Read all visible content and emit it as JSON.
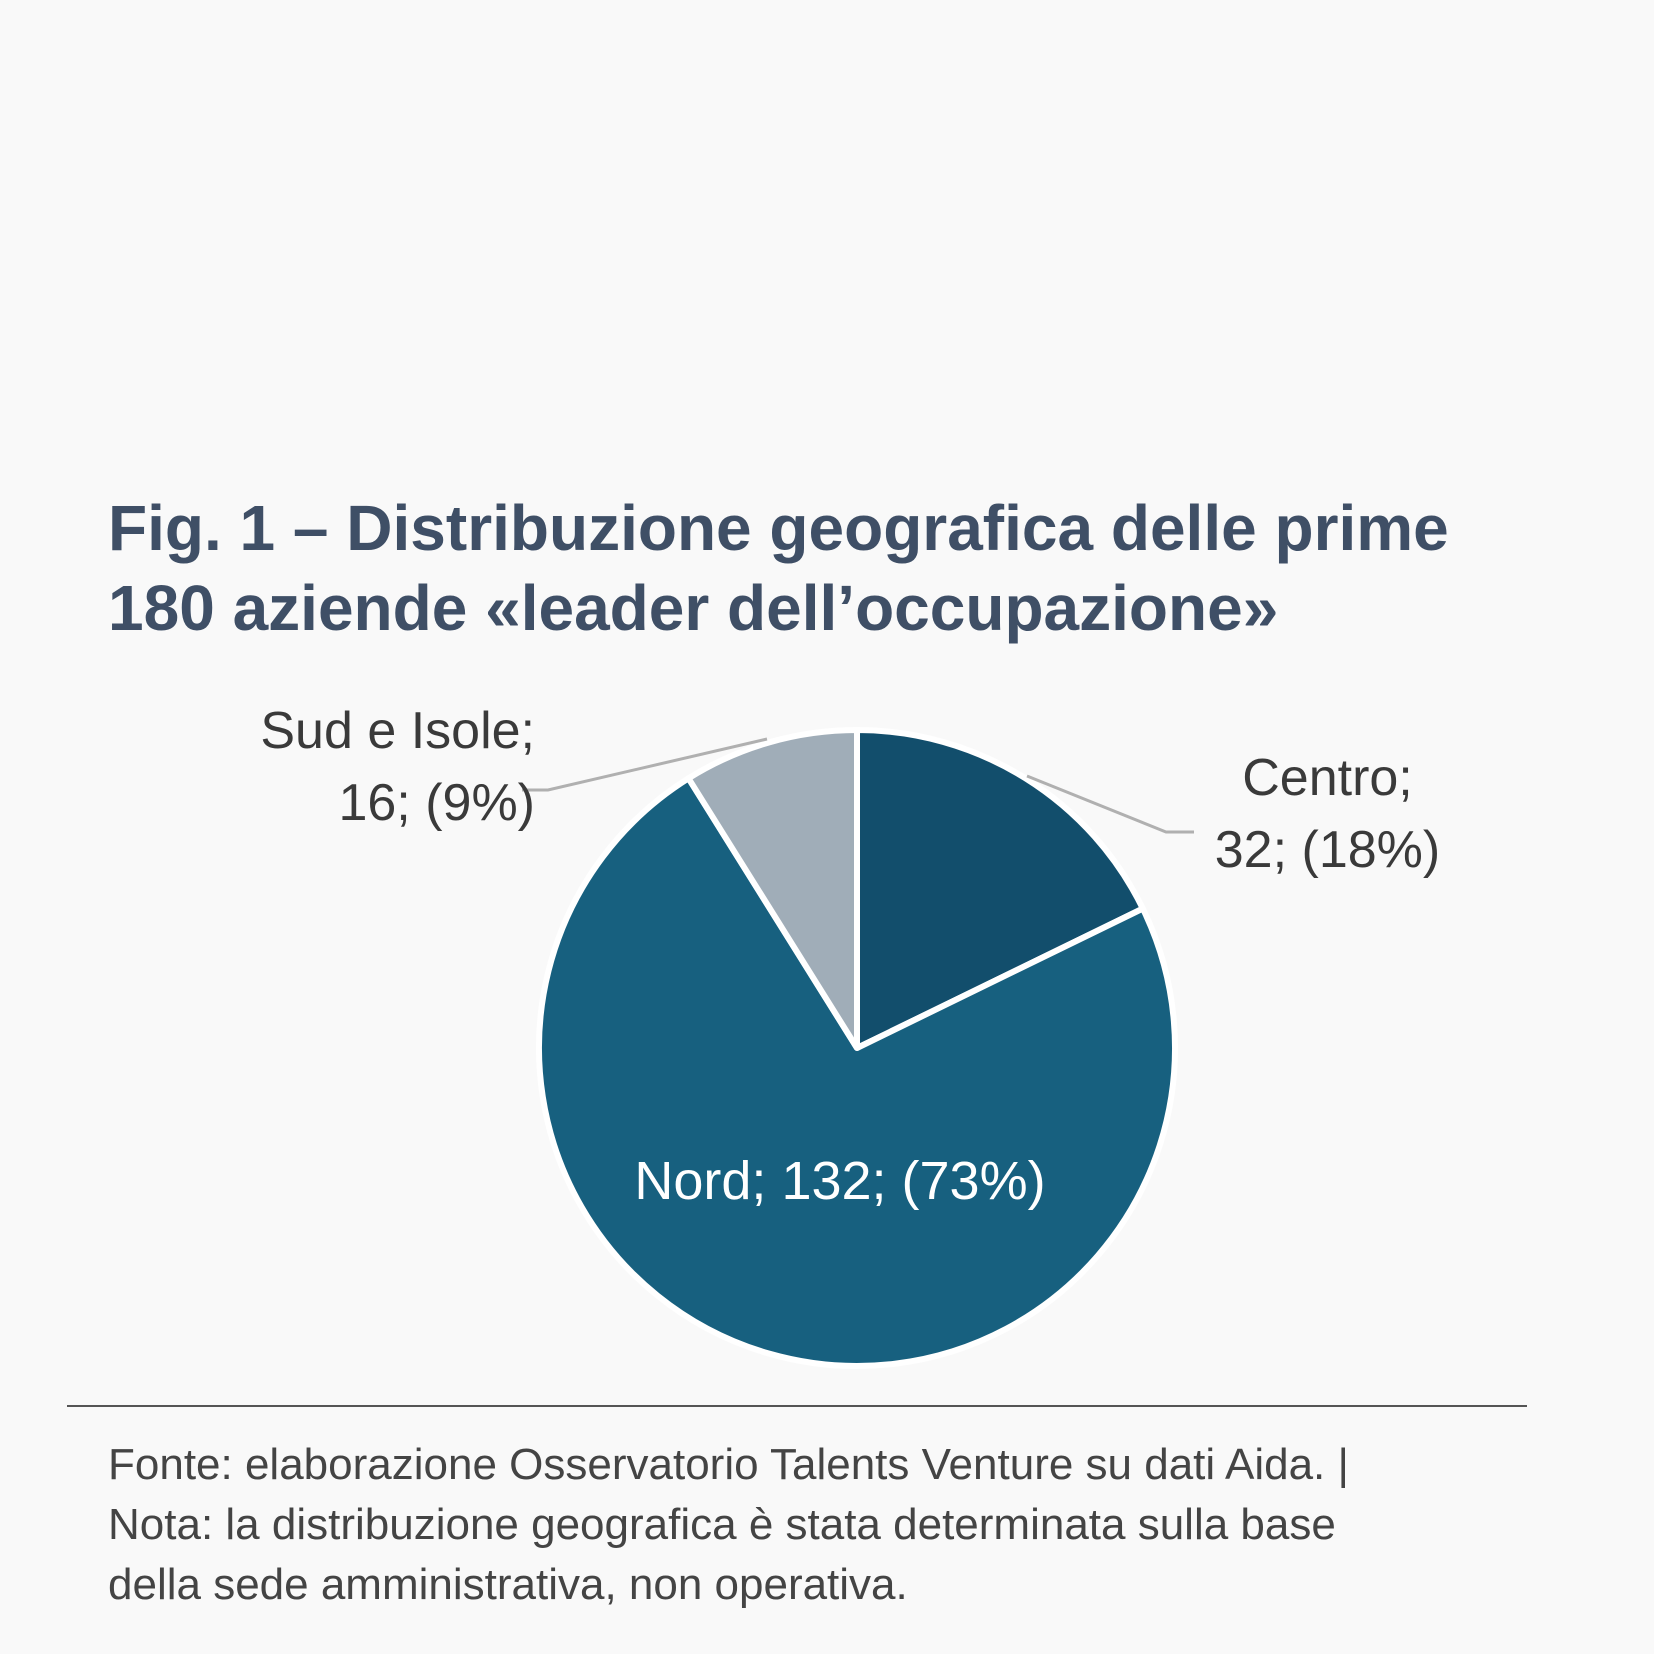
{
  "title": {
    "line1": "Fig. 1 – Distribuzione geografica delle prime",
    "line2": "180 aziende «leader dell’occupazione»"
  },
  "chart_data": {
    "type": "pie",
    "slices": [
      {
        "name": "Centro",
        "value": 32,
        "percent": "18%",
        "color": "#124e6c",
        "label_line1": "Centro;",
        "label_line2": "32; (18%)"
      },
      {
        "name": "Nord",
        "value": 132,
        "percent": "73%",
        "color": "#17607f",
        "label_line1": "Nord; 132; (73%)"
      },
      {
        "name": "Sud e Isole",
        "value": 16,
        "percent": "9%",
        "color": "#a0adb8",
        "label_line1": "Sud e Isole;",
        "label_line2": "16; (9%)"
      }
    ],
    "start": "12 o'clock",
    "direction": "clockwise",
    "separator_color": "#ffffff",
    "leader_line_color": "#b0b0b0"
  },
  "footer": {
    "line1": "Fonte: elaborazione Osservatorio Talents Venture su dati Aida. |",
    "line2": "Nota: la distribuzione geografica è stata determinata sulla base",
    "line3": "della sede amministrativa, non operativa."
  }
}
